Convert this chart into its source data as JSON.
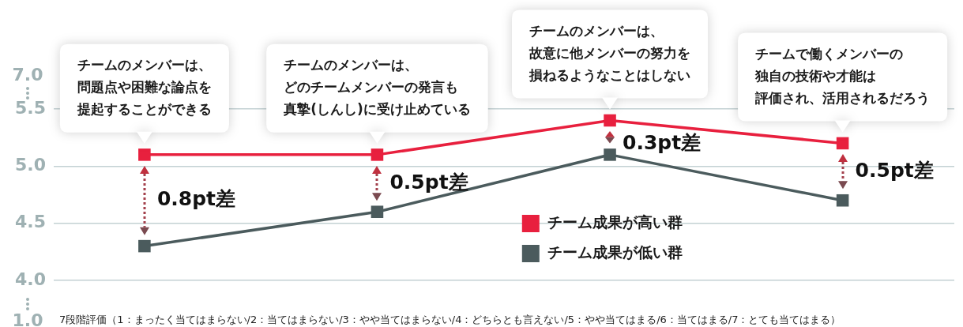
{
  "chart_data": {
    "type": "line",
    "categories": [
      null,
      null,
      null,
      null
    ],
    "series": [
      {
        "name": "チーム成果が高い群",
        "color": "#e8203e",
        "values": [
          5.1,
          5.1,
          5.4,
          5.2
        ]
      },
      {
        "name": "チーム成果が低い群",
        "color": "#4b5b5d",
        "values": [
          4.3,
          4.6,
          5.1,
          4.7
        ]
      }
    ],
    "ylim": [
      4.0,
      5.5
    ],
    "yticks": [
      {
        "value": 4,
        "label": "4.0"
      },
      {
        "value": 4.5,
        "label": "4.5"
      },
      {
        "value": 5,
        "label": "5.0"
      },
      {
        "value": 5.5,
        "label": "5.5"
      }
    ],
    "grid": "y",
    "marker": "square",
    "legend": "bottom",
    "annotations": [
      "チームのメンバーは、問題点や困難な論点を提起することができる",
      "チームのメンバーは、どのチームメンバーの発言も真摯(しんし)に受け止めている",
      "チームのメンバーは、故意に他メンバーの努力を損ねるようなことはしない",
      "チームで働くメンバーの独自の技術や才能は評価され、活用されるだろう",
      "0.8pt差",
      "0.5pt差",
      "0.3pt差",
      "0.5pt差",
      "7.0",
      "1.0",
      "7段階評価（1：まったく当てはまらない/2：当てはまらない/3：やや当てはまらない/4：どちらとも言えない/5：やや当てはまる/6：当てはまる/7：とても当てはまる）"
    ]
  }
}
